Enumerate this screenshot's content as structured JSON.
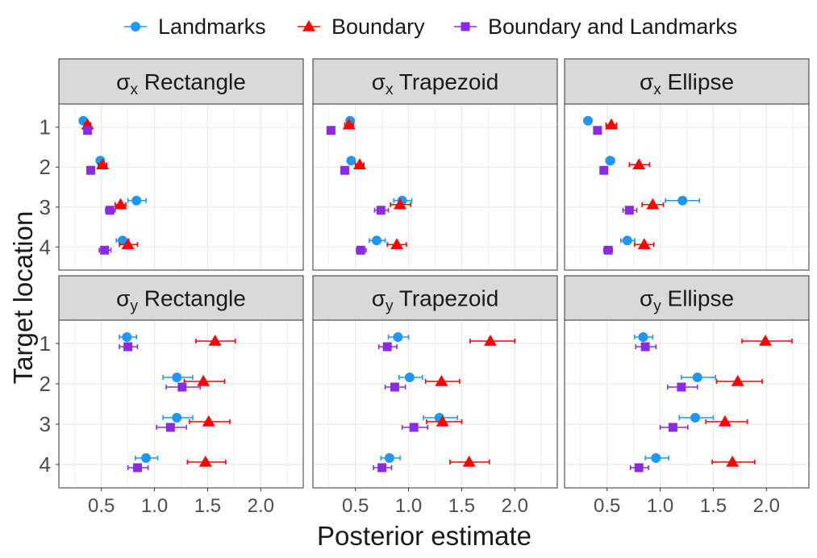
{
  "chart_data": {
    "type": "scatter",
    "title": "",
    "xlabel": "Posterior estimate",
    "ylabel": "Target location",
    "xlim": [
      0.1,
      2.4
    ],
    "x_ticks": [
      0.5,
      1.0,
      1.5,
      2.0
    ],
    "x_tick_labels": [
      "0.5",
      "1.0",
      "1.5",
      "2.0"
    ],
    "y_categories": [
      "1",
      "2",
      "3",
      "4"
    ],
    "legend_position": "top",
    "legend": [
      {
        "name": "Landmarks",
        "color": "#2196F3",
        "shape": "circle"
      },
      {
        "name": "Boundary",
        "color": "#FF0000",
        "shape": "triangle"
      },
      {
        "name": "Boundary and Landmarks",
        "color": "#8A2BE2",
        "shape": "square"
      }
    ],
    "panels": [
      {
        "title": {
          "sym": "σ",
          "sub": "x",
          "shape": "Rectangle"
        },
        "series": {
          "Landmarks": [
            {
              "loc": 1,
              "est": 0.33,
              "lo": 0.31,
              "hi": 0.35
            },
            {
              "loc": 2,
              "est": 0.49,
              "lo": 0.46,
              "hi": 0.52
            },
            {
              "loc": 3,
              "est": 0.83,
              "lo": 0.75,
              "hi": 0.92
            },
            {
              "loc": 4,
              "est": 0.7,
              "lo": 0.64,
              "hi": 0.76
            }
          ],
          "Boundary": [
            {
              "loc": 1,
              "est": 0.37,
              "lo": 0.34,
              "hi": 0.4
            },
            {
              "loc": 2,
              "est": 0.51,
              "lo": 0.47,
              "hi": 0.55
            },
            {
              "loc": 3,
              "est": 0.68,
              "lo": 0.63,
              "hi": 0.73
            },
            {
              "loc": 4,
              "est": 0.75,
              "lo": 0.67,
              "hi": 0.84
            }
          ],
          "Boundary and Landmarks": [
            {
              "loc": 1,
              "est": 0.37,
              "lo": 0.35,
              "hi": 0.39
            },
            {
              "loc": 2,
              "est": 0.4,
              "lo": 0.38,
              "hi": 0.43
            },
            {
              "loc": 3,
              "est": 0.58,
              "lo": 0.54,
              "hi": 0.63
            },
            {
              "loc": 4,
              "est": 0.53,
              "lo": 0.48,
              "hi": 0.59
            }
          ]
        }
      },
      {
        "title": {
          "sym": "σ",
          "sub": "x",
          "shape": "Trapezoid"
        },
        "series": {
          "Landmarks": [
            {
              "loc": 1,
              "est": 0.45,
              "lo": 0.42,
              "hi": 0.48
            },
            {
              "loc": 2,
              "est": 0.46,
              "lo": 0.43,
              "hi": 0.49
            },
            {
              "loc": 3,
              "est": 0.94,
              "lo": 0.86,
              "hi": 1.03
            },
            {
              "loc": 4,
              "est": 0.7,
              "lo": 0.63,
              "hi": 0.78
            }
          ],
          "Boundary": [
            {
              "loc": 1,
              "est": 0.44,
              "lo": 0.4,
              "hi": 0.48
            },
            {
              "loc": 2,
              "est": 0.54,
              "lo": 0.5,
              "hi": 0.58
            },
            {
              "loc": 3,
              "est": 0.92,
              "lo": 0.83,
              "hi": 1.02
            },
            {
              "loc": 4,
              "est": 0.89,
              "lo": 0.8,
              "hi": 0.98
            }
          ],
          "Boundary and Landmarks": [
            {
              "loc": 1,
              "est": 0.27,
              "lo": 0.26,
              "hi": 0.28
            },
            {
              "loc": 2,
              "est": 0.4,
              "lo": 0.38,
              "hi": 0.43
            },
            {
              "loc": 3,
              "est": 0.74,
              "lo": 0.68,
              "hi": 0.81
            },
            {
              "loc": 4,
              "est": 0.55,
              "lo": 0.51,
              "hi": 0.6
            }
          ]
        }
      },
      {
        "title": {
          "sym": "σ",
          "sub": "x",
          "shape": "Ellipse"
        },
        "series": {
          "Landmarks": [
            {
              "loc": 1,
              "est": 0.32,
              "lo": 0.3,
              "hi": 0.34
            },
            {
              "loc": 2,
              "est": 0.53,
              "lo": 0.49,
              "hi": 0.57
            },
            {
              "loc": 3,
              "est": 1.21,
              "lo": 1.05,
              "hi": 1.37
            },
            {
              "loc": 4,
              "est": 0.69,
              "lo": 0.63,
              "hi": 0.76
            }
          ],
          "Boundary": [
            {
              "loc": 1,
              "est": 0.54,
              "lo": 0.49,
              "hi": 0.59
            },
            {
              "loc": 2,
              "est": 0.8,
              "lo": 0.71,
              "hi": 0.9
            },
            {
              "loc": 3,
              "est": 0.93,
              "lo": 0.83,
              "hi": 1.03
            },
            {
              "loc": 4,
              "est": 0.85,
              "lo": 0.76,
              "hi": 0.94
            }
          ],
          "Boundary and Landmarks": [
            {
              "loc": 1,
              "est": 0.41,
              "lo": 0.38,
              "hi": 0.44
            },
            {
              "loc": 2,
              "est": 0.47,
              "lo": 0.44,
              "hi": 0.5
            },
            {
              "loc": 3,
              "est": 0.71,
              "lo": 0.65,
              "hi": 0.78
            },
            {
              "loc": 4,
              "est": 0.51,
              "lo": 0.47,
              "hi": 0.55
            }
          ]
        }
      },
      {
        "title": {
          "sym": "σ",
          "sub": "y",
          "shape": "Rectangle"
        },
        "series": {
          "Landmarks": [
            {
              "loc": 1,
              "est": 0.74,
              "lo": 0.67,
              "hi": 0.83
            },
            {
              "loc": 2,
              "est": 1.21,
              "lo": 1.08,
              "hi": 1.36
            },
            {
              "loc": 3,
              "est": 1.21,
              "lo": 1.08,
              "hi": 1.36
            },
            {
              "loc": 4,
              "est": 0.92,
              "lo": 0.82,
              "hi": 1.03
            }
          ],
          "Boundary": [
            {
              "loc": 1,
              "est": 1.57,
              "lo": 1.39,
              "hi": 1.76
            },
            {
              "loc": 2,
              "est": 1.46,
              "lo": 1.28,
              "hi": 1.66
            },
            {
              "loc": 3,
              "est": 1.51,
              "lo": 1.33,
              "hi": 1.71
            },
            {
              "loc": 4,
              "est": 1.48,
              "lo": 1.31,
              "hi": 1.67
            }
          ],
          "Boundary and Landmarks": [
            {
              "loc": 1,
              "est": 0.75,
              "lo": 0.67,
              "hi": 0.84
            },
            {
              "loc": 2,
              "est": 1.26,
              "lo": 1.11,
              "hi": 1.43
            },
            {
              "loc": 3,
              "est": 1.15,
              "lo": 1.02,
              "hi": 1.3
            },
            {
              "loc": 4,
              "est": 0.84,
              "lo": 0.75,
              "hi": 0.94
            }
          ]
        }
      },
      {
        "title": {
          "sym": "σ",
          "sub": "y",
          "shape": "Trapezoid"
        },
        "series": {
          "Landmarks": [
            {
              "loc": 1,
              "est": 0.9,
              "lo": 0.81,
              "hi": 1.0
            },
            {
              "loc": 2,
              "est": 1.01,
              "lo": 0.91,
              "hi": 1.13
            },
            {
              "loc": 3,
              "est": 1.29,
              "lo": 1.14,
              "hi": 1.46
            },
            {
              "loc": 4,
              "est": 0.82,
              "lo": 0.74,
              "hi": 0.92
            }
          ],
          "Boundary": [
            {
              "loc": 1,
              "est": 1.77,
              "lo": 1.58,
              "hi": 2.0
            },
            {
              "loc": 2,
              "est": 1.31,
              "lo": 1.16,
              "hi": 1.48
            },
            {
              "loc": 3,
              "est": 1.32,
              "lo": 1.17,
              "hi": 1.5
            },
            {
              "loc": 4,
              "est": 1.57,
              "lo": 1.39,
              "hi": 1.76
            }
          ],
          "Boundary and Landmarks": [
            {
              "loc": 1,
              "est": 0.8,
              "lo": 0.72,
              "hi": 0.89
            },
            {
              "loc": 2,
              "est": 0.87,
              "lo": 0.78,
              "hi": 0.97
            },
            {
              "loc": 3,
              "est": 1.05,
              "lo": 0.94,
              "hi": 1.18
            },
            {
              "loc": 4,
              "est": 0.75,
              "lo": 0.67,
              "hi": 0.84
            }
          ]
        }
      },
      {
        "title": {
          "sym": "σ",
          "sub": "y",
          "shape": "Ellipse"
        },
        "series": {
          "Landmarks": [
            {
              "loc": 1,
              "est": 0.84,
              "lo": 0.76,
              "hi": 0.93
            },
            {
              "loc": 2,
              "est": 1.35,
              "lo": 1.2,
              "hi": 1.52
            },
            {
              "loc": 3,
              "est": 1.33,
              "lo": 1.18,
              "hi": 1.5
            },
            {
              "loc": 4,
              "est": 0.96,
              "lo": 0.86,
              "hi": 1.08
            }
          ],
          "Boundary": [
            {
              "loc": 1,
              "est": 1.99,
              "lo": 1.77,
              "hi": 2.24
            },
            {
              "loc": 2,
              "est": 1.73,
              "lo": 1.53,
              "hi": 1.96
            },
            {
              "loc": 3,
              "est": 1.61,
              "lo": 1.43,
              "hi": 1.82
            },
            {
              "loc": 4,
              "est": 1.68,
              "lo": 1.49,
              "hi": 1.89
            }
          ],
          "Boundary and Landmarks": [
            {
              "loc": 1,
              "est": 0.86,
              "lo": 0.77,
              "hi": 0.96
            },
            {
              "loc": 2,
              "est": 1.2,
              "lo": 1.07,
              "hi": 1.35
            },
            {
              "loc": 3,
              "est": 1.12,
              "lo": 1.0,
              "hi": 1.26
            },
            {
              "loc": 4,
              "est": 0.8,
              "lo": 0.72,
              "hi": 0.89
            }
          ]
        }
      }
    ]
  }
}
